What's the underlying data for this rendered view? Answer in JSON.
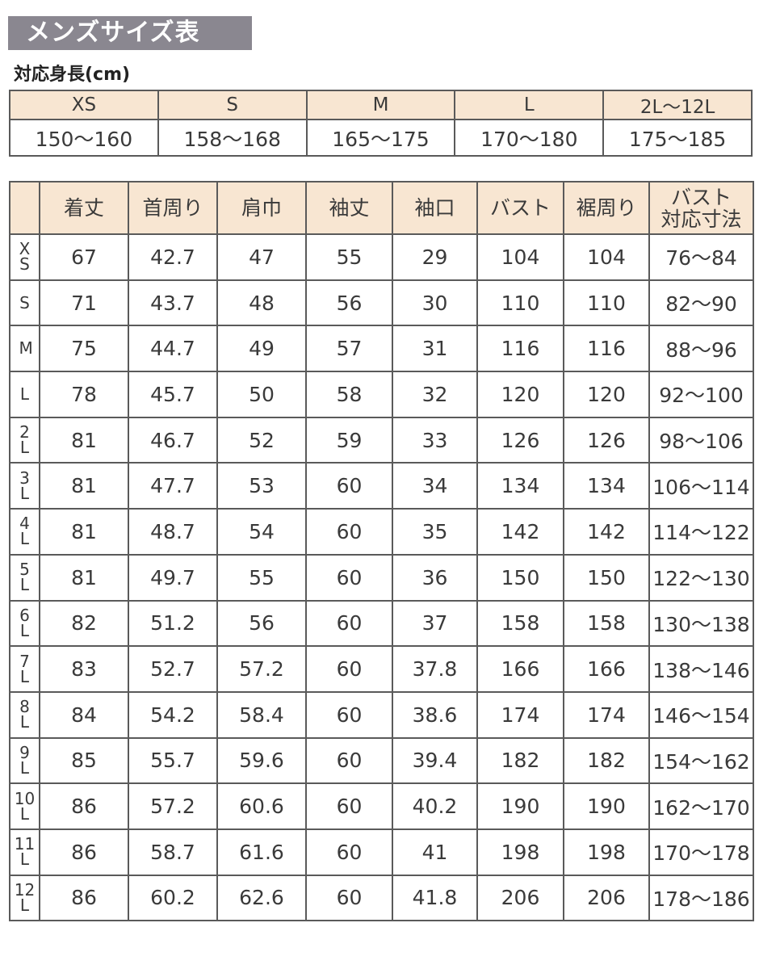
{
  "title": "メンズサイズ表",
  "height_section": {
    "label": "対応身長(cm)",
    "sizes": [
      "XS",
      "S",
      "M",
      "L",
      "2L〜12L"
    ],
    "ranges": [
      "150〜160",
      "158〜168",
      "165〜175",
      "170〜180",
      "175〜185"
    ]
  },
  "size_table": {
    "headers": [
      "",
      "着丈",
      "首周り",
      "肩巾",
      "袖丈",
      "袖口",
      "バスト",
      "裾周り",
      "バスト\n対応寸法"
    ],
    "rows": [
      [
        "XS",
        "67",
        "42.7",
        "47",
        "55",
        "29",
        "104",
        "104",
        "76〜84"
      ],
      [
        "S",
        "71",
        "43.7",
        "48",
        "56",
        "30",
        "110",
        "110",
        "82〜90"
      ],
      [
        "M",
        "75",
        "44.7",
        "49",
        "57",
        "31",
        "116",
        "116",
        "88〜96"
      ],
      [
        "L",
        "78",
        "45.7",
        "50",
        "58",
        "32",
        "120",
        "120",
        "92〜100"
      ],
      [
        "2L",
        "81",
        "46.7",
        "52",
        "59",
        "33",
        "126",
        "126",
        "98〜106"
      ],
      [
        "3L",
        "81",
        "47.7",
        "53",
        "60",
        "34",
        "134",
        "134",
        "106〜114"
      ],
      [
        "4L",
        "81",
        "48.7",
        "54",
        "60",
        "35",
        "142",
        "142",
        "114〜122"
      ],
      [
        "5L",
        "81",
        "49.7",
        "55",
        "60",
        "36",
        "150",
        "150",
        "122〜130"
      ],
      [
        "6L",
        "82",
        "51.2",
        "56",
        "60",
        "37",
        "158",
        "158",
        "130〜138"
      ],
      [
        "7L",
        "83",
        "52.7",
        "57.2",
        "60",
        "37.8",
        "166",
        "166",
        "138〜146"
      ],
      [
        "8L",
        "84",
        "54.2",
        "58.4",
        "60",
        "38.6",
        "174",
        "174",
        "146〜154"
      ],
      [
        "9L",
        "85",
        "55.7",
        "59.6",
        "60",
        "39.4",
        "182",
        "182",
        "154〜162"
      ],
      [
        "10L",
        "86",
        "57.2",
        "60.6",
        "60",
        "40.2",
        "190",
        "190",
        "162〜170"
      ],
      [
        "11L",
        "86",
        "58.7",
        "61.6",
        "60",
        "41",
        "198",
        "198",
        "170〜178"
      ],
      [
        "12L",
        "86",
        "60.2",
        "62.6",
        "60",
        "41.8",
        "206",
        "206",
        "178〜186"
      ]
    ]
  },
  "colors": {
    "title_bg": "#8a8790",
    "header_bg": "#f8e6d2",
    "border": "#5a5a5a"
  }
}
